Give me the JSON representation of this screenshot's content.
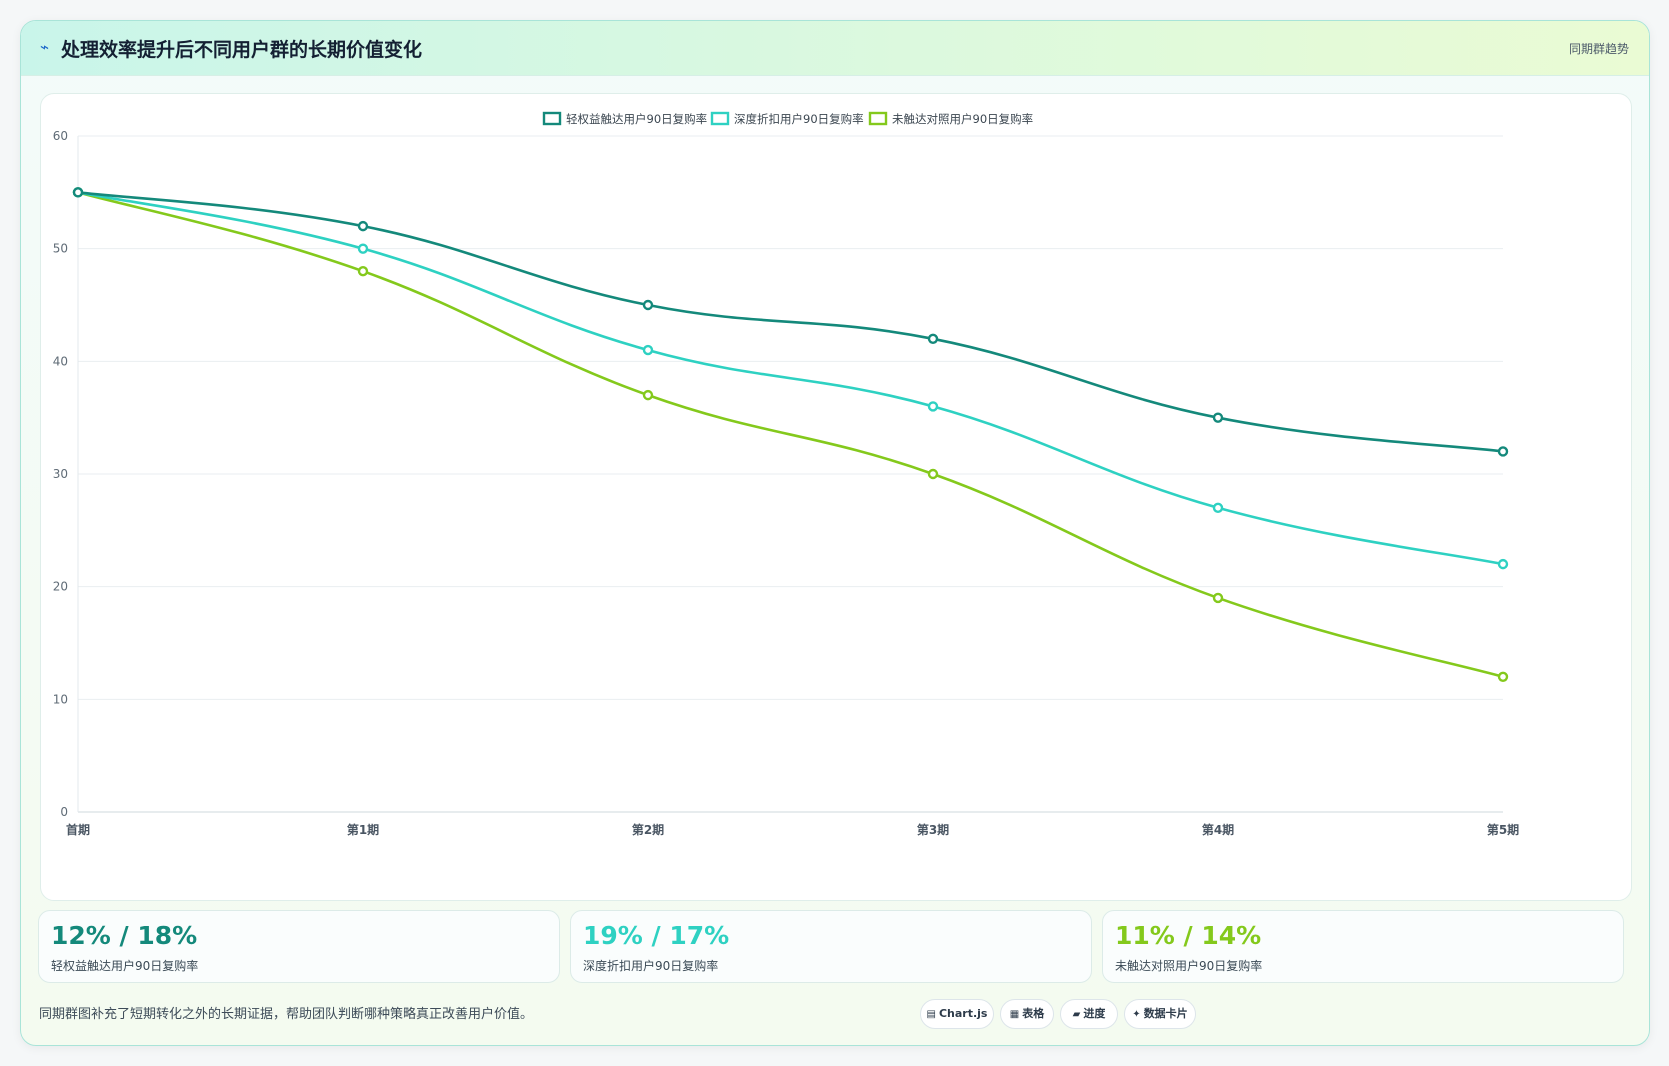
{
  "header": {
    "title_icon": "line-chart-icon",
    "title": "处理效率提升后不同用户群的长期价值变化",
    "tag": "同期群趋势"
  },
  "chart_data": {
    "type": "line",
    "categories": [
      "首期",
      "第1期",
      "第2期",
      "第3期",
      "第4期",
      "第5期"
    ],
    "ylim": [
      0,
      60
    ],
    "yticks": [
      0,
      10,
      20,
      30,
      40,
      50,
      60
    ],
    "grid": true,
    "legend_position": "top",
    "series": [
      {
        "name": "轻权益触达用户90日复购率",
        "color": "#14897b",
        "values": [
          55,
          52,
          45,
          42,
          35,
          32
        ]
      },
      {
        "name": "深度折扣用户90日复购率",
        "color": "#2ed1c2",
        "values": [
          55,
          50,
          41,
          36,
          27,
          22
        ]
      },
      {
        "name": "未触达对照用户90日复购率",
        "color": "#84c91c",
        "values": [
          55,
          48,
          37,
          30,
          19,
          12
        ]
      }
    ]
  },
  "stats": [
    {
      "value": "12% / 18%",
      "label": "轻权益触达用户90日复购率",
      "color": "#14897b"
    },
    {
      "value": "19% / 17%",
      "label": "深度折扣用户90日复购率",
      "color": "#2ed1c2"
    },
    {
      "value": "11% / 14%",
      "label": "未触达对照用户90日复购率",
      "color": "#84c91c"
    }
  ],
  "footnote": "同期群图补充了短期转化之外的长期证据，帮助团队判断哪种策略真正改善用户价值。",
  "chips": [
    {
      "icon": "chart-icon",
      "glyph": "▤",
      "label": "Chart.js"
    },
    {
      "icon": "table-icon",
      "glyph": "▦",
      "label": "表格"
    },
    {
      "icon": "progress-icon",
      "glyph": "▰",
      "label": "进度"
    },
    {
      "icon": "sparkle-icon",
      "glyph": "✦",
      "label": "数据卡片"
    }
  ]
}
